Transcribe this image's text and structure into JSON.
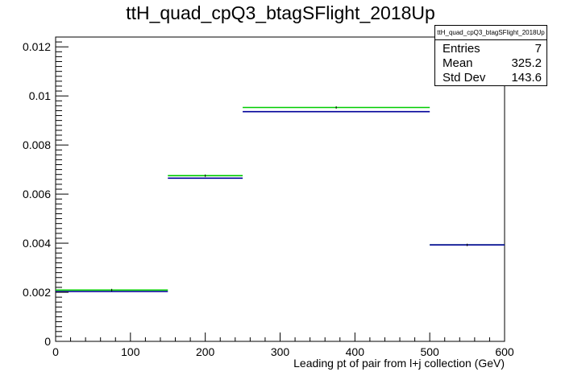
{
  "chart_data": {
    "type": "bar",
    "title": "ttH_quad_cpQ3_btagSFlight_2018Up",
    "xlabel": "Leading pt of pair from l+j collection (GeV)",
    "ylabel": "",
    "xlim": [
      0,
      600
    ],
    "ylim": [
      0,
      0.0124
    ],
    "x_ticks": [
      "0",
      "100",
      "200",
      "300",
      "400",
      "500",
      "600"
    ],
    "y_ticks": [
      "0",
      "0.002",
      "0.004",
      "0.006",
      "0.008",
      "0.01",
      "0.012"
    ],
    "bin_edges": [
      0,
      150,
      250,
      500,
      600
    ],
    "series": [
      {
        "color": "#00cc00",
        "values": [
          0.00209,
          0.00675,
          0.00953,
          0.00393
        ]
      },
      {
        "color": "#000099",
        "values": [
          0.00203,
          0.00665,
          0.00936,
          0.00393
        ]
      }
    ],
    "grid": false,
    "legend": "none",
    "stats_box": {
      "title": "ttH_quad_cpQ3_btagSFlight_2018Up",
      "rows": [
        {
          "label": "Entries",
          "value": "7"
        },
        {
          "label": "Mean",
          "value": "325.2"
        },
        {
          "label": "Std Dev",
          "value": "143.6"
        }
      ]
    }
  }
}
